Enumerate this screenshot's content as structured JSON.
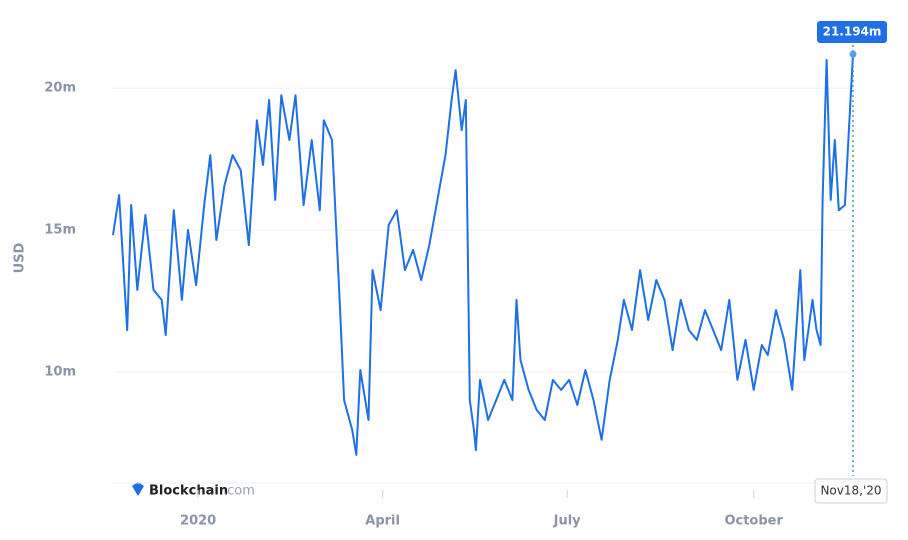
{
  "chart_data": {
    "type": "line",
    "y_label": "USD",
    "watermark": {
      "brand": "Blockchain",
      "suffix": ".com"
    },
    "x": [
      0,
      3,
      7,
      9,
      12,
      16,
      20,
      24,
      26,
      30,
      34,
      37,
      41,
      45,
      48,
      51,
      55,
      59,
      63,
      67,
      71,
      74,
      77,
      80,
      83,
      87,
      90,
      94,
      98,
      102,
      104,
      108,
      112,
      114,
      118,
      120,
      122,
      126,
      128,
      132,
      136,
      140,
      144,
      148,
      152,
      156,
      160,
      164,
      167,
      169,
      172,
      174,
      176,
      178,
      179,
      181,
      185,
      189,
      193,
      197,
      199,
      201,
      205,
      209,
      213,
      217,
      221,
      225,
      229,
      233,
      237,
      241,
      245,
      249,
      252,
      256,
      260,
      264,
      268,
      272,
      276,
      280,
      284,
      288,
      292,
      296,
      300,
      304,
      308,
      312,
      316,
      320,
      323,
      327,
      331,
      335,
      339,
      341,
      345,
      347,
      349,
      350,
      352,
      354,
      356,
      358,
      361,
      363,
      365
    ],
    "series": [
      {
        "color": "#1f6fe5",
        "values": [
          14.82,
          16.23,
          11.48,
          15.88,
          12.89,
          15.53,
          12.89,
          12.54,
          11.3,
          15.7,
          12.54,
          15.0,
          13.06,
          15.88,
          17.64,
          14.65,
          16.58,
          17.64,
          17.11,
          14.47,
          18.87,
          17.29,
          19.58,
          16.06,
          19.75,
          18.17,
          19.75,
          15.88,
          18.17,
          15.7,
          18.87,
          18.17,
          12.18,
          9.01,
          7.96,
          7.08,
          10.07,
          8.31,
          13.59,
          12.18,
          15.18,
          15.7,
          13.59,
          14.3,
          13.24,
          14.47,
          16.06,
          17.64,
          19.58,
          20.63,
          18.52,
          19.58,
          9.01,
          7.96,
          7.25,
          9.72,
          8.31,
          9.01,
          9.72,
          9.01,
          12.54,
          10.42,
          9.37,
          8.66,
          8.31,
          9.72,
          9.37,
          9.72,
          8.84,
          10.07,
          9.01,
          7.61,
          9.72,
          11.13,
          12.54,
          11.48,
          13.59,
          11.83,
          13.24,
          12.54,
          10.77,
          12.54,
          11.48,
          11.13,
          12.18,
          11.48,
          10.77,
          12.54,
          9.72,
          11.13,
          9.37,
          10.95,
          10.6,
          12.18,
          11.13,
          9.37,
          13.59,
          10.42,
          12.54,
          11.48,
          10.95,
          16.06,
          20.99,
          16.06,
          18.17,
          15.7,
          15.88,
          18.52,
          21.194
        ]
      }
    ],
    "xlim": [
      0,
      365
    ],
    "xticks": [
      {
        "value": 42,
        "label": "2020"
      },
      {
        "value": 133,
        "label": "April"
      },
      {
        "value": 224,
        "label": "July"
      },
      {
        "value": 316,
        "label": "October"
      }
    ],
    "ylim": [
      6.09,
      22.75
    ],
    "yticks": [
      {
        "value": 10,
        "label": "10m"
      },
      {
        "value": 15,
        "label": "15m"
      },
      {
        "value": 20,
        "label": "20m"
      }
    ],
    "grid": true,
    "hover": {
      "x_label": "Nov18,'20",
      "value": 21.194,
      "label": "21.194m"
    }
  }
}
